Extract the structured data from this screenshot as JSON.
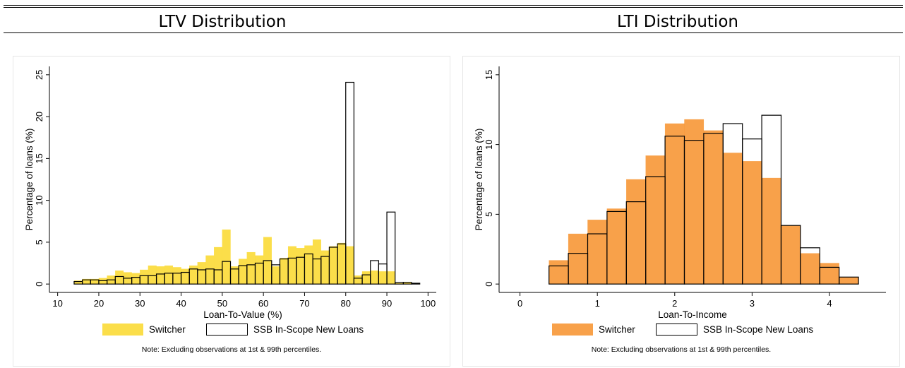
{
  "chart_data": [
    {
      "type": "bar",
      "title": "LTV Distribution",
      "xlabel": "Loan-To-Value (%)",
      "ylabel": "Percentage of loans (%)",
      "xlim": [
        8,
        102
      ],
      "ylim": [
        -1,
        26
      ],
      "xticks": [
        10,
        20,
        30,
        40,
        50,
        60,
        70,
        80,
        90,
        100
      ],
      "yticks": [
        0,
        5,
        10,
        15,
        20,
        25
      ],
      "bin_width": 2,
      "note": "Note: Excluding observations at 1st & 99th percentiles.",
      "legend_position": "bottom",
      "series": [
        {
          "name": "Switcher",
          "style": "filled",
          "color": "#fbdc3c",
          "bins": [
            [
              15,
              0.4
            ],
            [
              17,
              0.6
            ],
            [
              19,
              0.6
            ],
            [
              21,
              0.7
            ],
            [
              23,
              1.0
            ],
            [
              25,
              1.6
            ],
            [
              27,
              1.4
            ],
            [
              29,
              1.3
            ],
            [
              31,
              1.7
            ],
            [
              33,
              2.2
            ],
            [
              35,
              2.1
            ],
            [
              37,
              2.2
            ],
            [
              39,
              2.0
            ],
            [
              41,
              1.8
            ],
            [
              43,
              2.2
            ],
            [
              45,
              2.6
            ],
            [
              47,
              3.4
            ],
            [
              49,
              4.4
            ],
            [
              51,
              6.5
            ],
            [
              53,
              2.1
            ],
            [
              55,
              3.0
            ],
            [
              57,
              3.8
            ],
            [
              59,
              3.4
            ],
            [
              61,
              5.6
            ],
            [
              63,
              2.1
            ],
            [
              65,
              3.1
            ],
            [
              67,
              4.5
            ],
            [
              69,
              4.3
            ],
            [
              71,
              4.6
            ],
            [
              73,
              5.3
            ],
            [
              75,
              4.0
            ],
            [
              77,
              4.5
            ],
            [
              79,
              4.9
            ],
            [
              81,
              4.5
            ],
            [
              83,
              1.0
            ],
            [
              85,
              1.5
            ],
            [
              87,
              1.6
            ],
            [
              89,
              1.5
            ],
            [
              91,
              1.5
            ],
            [
              93,
              0.1
            ],
            [
              95,
              0.2
            ]
          ]
        },
        {
          "name": "SSB In-Scope New Loans",
          "style": "outline",
          "color": "#000000",
          "bins": [
            [
              15,
              0.3
            ],
            [
              17,
              0.5
            ],
            [
              19,
              0.5
            ],
            [
              21,
              0.4
            ],
            [
              23,
              0.5
            ],
            [
              25,
              0.9
            ],
            [
              27,
              0.7
            ],
            [
              29,
              0.8
            ],
            [
              31,
              1.0
            ],
            [
              33,
              1.0
            ],
            [
              35,
              1.2
            ],
            [
              37,
              1.3
            ],
            [
              39,
              1.3
            ],
            [
              41,
              1.4
            ],
            [
              43,
              1.8
            ],
            [
              45,
              1.7
            ],
            [
              47,
              1.8
            ],
            [
              49,
              1.7
            ],
            [
              51,
              2.7
            ],
            [
              53,
              1.8
            ],
            [
              55,
              2.2
            ],
            [
              57,
              2.3
            ],
            [
              59,
              2.5
            ],
            [
              61,
              2.8
            ],
            [
              63,
              2.3
            ],
            [
              65,
              3.0
            ],
            [
              67,
              3.1
            ],
            [
              69,
              3.2
            ],
            [
              71,
              3.6
            ],
            [
              73,
              3.0
            ],
            [
              75,
              3.3
            ],
            [
              77,
              4.4
            ],
            [
              79,
              4.8
            ],
            [
              81,
              24.1
            ],
            [
              83,
              0.7
            ],
            [
              85,
              1.1
            ],
            [
              87,
              2.8
            ],
            [
              89,
              2.4
            ],
            [
              91,
              8.6
            ],
            [
              93,
              0.2
            ],
            [
              95,
              0.2
            ],
            [
              97,
              0.1
            ]
          ]
        }
      ]
    },
    {
      "type": "bar",
      "title": "LTI Distribution",
      "xlabel": "Loan-To-Income",
      "ylabel": "Percentage of loans (%)",
      "xlim": [
        -0.27,
        4.73
      ],
      "ylim": [
        -0.6,
        15.6
      ],
      "xticks": [
        0,
        1,
        2,
        3,
        4
      ],
      "yticks": [
        0,
        5,
        10,
        15
      ],
      "bin_width": 0.25,
      "note": "Note: Excluding observations at 1st & 99th percentiles.",
      "legend_position": "bottom",
      "series": [
        {
          "name": "Switcher",
          "style": "filled",
          "color": "#f79a3c",
          "bins": [
            [
              0.5,
              1.7
            ],
            [
              0.75,
              3.6
            ],
            [
              1.0,
              4.6
            ],
            [
              1.25,
              5.4
            ],
            [
              1.5,
              7.5
            ],
            [
              1.75,
              9.2
            ],
            [
              2.0,
              11.5
            ],
            [
              2.25,
              11.8
            ],
            [
              2.5,
              11.0
            ],
            [
              2.75,
              9.4
            ],
            [
              3.0,
              8.8
            ],
            [
              3.25,
              7.6
            ],
            [
              3.5,
              4.2
            ],
            [
              3.75,
              2.2
            ],
            [
              4.0,
              1.5
            ],
            [
              4.25,
              0.5
            ]
          ]
        },
        {
          "name": "SSB In-Scope New Loans",
          "style": "outline",
          "color": "#000000",
          "bins": [
            [
              0.5,
              1.3
            ],
            [
              0.75,
              2.2
            ],
            [
              1.0,
              3.6
            ],
            [
              1.25,
              5.2
            ],
            [
              1.5,
              5.9
            ],
            [
              1.75,
              7.7
            ],
            [
              2.0,
              10.6
            ],
            [
              2.25,
              10.3
            ],
            [
              2.5,
              10.8
            ],
            [
              2.75,
              11.5
            ],
            [
              3.0,
              10.4
            ],
            [
              3.25,
              12.1
            ],
            [
              3.5,
              4.2
            ],
            [
              3.75,
              2.6
            ],
            [
              4.0,
              1.2
            ],
            [
              4.25,
              0.5
            ]
          ]
        }
      ]
    }
  ]
}
